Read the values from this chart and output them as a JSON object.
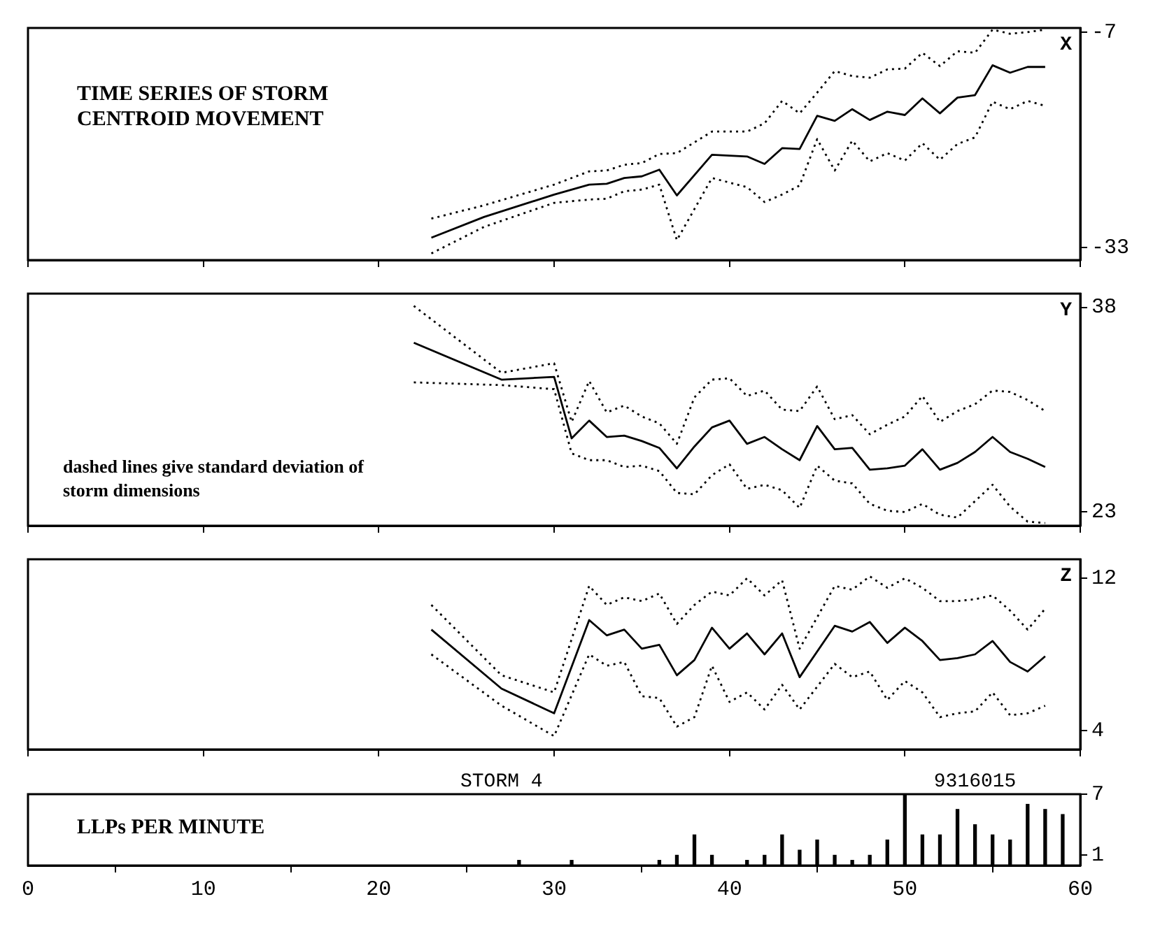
{
  "chart_data": [
    {
      "type": "line",
      "title": "TIME SERIES OF STORM CENTROID MOVEMENT",
      "ylabel": "X",
      "x": [
        23,
        26,
        30,
        32,
        33,
        34,
        35,
        36,
        37,
        39,
        41,
        42,
        43,
        44,
        45,
        46,
        47,
        48,
        49,
        50,
        51,
        52,
        53,
        54,
        55,
        56,
        57,
        58
      ],
      "xlim": [
        0,
        60
      ],
      "xticks": [
        0,
        10,
        20,
        30,
        40,
        50,
        60
      ],
      "ylim": [
        -34.5,
        -6.5
      ],
      "yticks": [
        -7,
        -33
      ],
      "tick_labels": "y",
      "series": [
        {
          "color": "#000000",
          "line_style": "dotted",
          "values": [
            -29.5,
            -27.9,
            -25.4,
            -23.8,
            -23.7,
            -23.0,
            -22.8,
            -21.7,
            -21.6,
            -19.0,
            -19.0,
            -18.0,
            -15.3,
            -16.8,
            -14.3,
            -11.7,
            -12.3,
            -12.5,
            -11.5,
            -11.4,
            -9.5,
            -11.1,
            -9.3,
            -9.5,
            -6.7,
            -7.2,
            -7.0,
            -6.7
          ]
        },
        {
          "color": "#000000",
          "line_style": "solid",
          "values": [
            -31.8,
            -29.3,
            -26.6,
            -25.4,
            -25.3,
            -24.6,
            -24.4,
            -23.6,
            -26.7,
            -21.8,
            -22.0,
            -22.9,
            -21.0,
            -21.1,
            -17.1,
            -17.7,
            -16.3,
            -17.6,
            -16.6,
            -17.0,
            -15.0,
            -16.8,
            -14.9,
            -14.6,
            -11.0,
            -11.9,
            -11.2,
            -11.2
          ]
        },
        {
          "color": "#000000",
          "line_style": "dotted",
          "values": [
            -33.7,
            -30.5,
            -27.6,
            -27.2,
            -27.1,
            -26.2,
            -26.0,
            -25.4,
            -32.1,
            -24.6,
            -25.7,
            -27.5,
            -26.6,
            -25.5,
            -19.9,
            -23.7,
            -20.1,
            -22.6,
            -21.6,
            -22.5,
            -20.4,
            -22.4,
            -20.5,
            -19.7,
            -15.4,
            -16.3,
            -15.3,
            -15.9
          ]
        }
      ]
    },
    {
      "type": "line",
      "ylabel": "Y",
      "annotations": [
        "dashed lines give standard deviation of storm dimensions"
      ],
      "x": [
        22,
        27,
        30,
        31,
        32,
        33,
        34,
        35,
        36,
        37,
        38,
        39,
        40,
        41,
        42,
        43,
        44,
        45,
        46,
        47,
        48,
        49,
        50,
        51,
        52,
        53,
        54,
        55,
        56,
        57,
        58
      ],
      "xlim": [
        0,
        60
      ],
      "xticks": [
        0,
        10,
        20,
        30,
        40,
        50,
        60
      ],
      "ylim": [
        22,
        39
      ],
      "yticks": [
        38,
        23
      ],
      "tick_labels": "y",
      "series": [
        {
          "color": "#000000",
          "line_style": "dotted",
          "values": [
            38.1,
            33.2,
            33.9,
            29.6,
            32.6,
            30.3,
            30.8,
            30.0,
            29.5,
            28.0,
            31.4,
            32.7,
            32.8,
            31.5,
            31.9,
            30.5,
            30.4,
            32.2,
            29.8,
            30.1,
            28.7,
            29.4,
            30.0,
            31.5,
            29.6,
            30.4,
            30.9,
            31.9,
            31.8,
            31.2,
            30.4
          ]
        },
        {
          "color": "#000000",
          "line_style": "solid",
          "values": [
            35.4,
            32.7,
            32.9,
            28.4,
            29.7,
            28.5,
            28.6,
            28.2,
            27.7,
            26.2,
            27.8,
            29.2,
            29.7,
            28.0,
            28.5,
            27.6,
            26.8,
            29.3,
            27.6,
            27.7,
            26.1,
            26.2,
            26.4,
            27.6,
            26.1,
            26.6,
            27.4,
            28.5,
            27.4,
            26.9,
            26.3
          ]
        },
        {
          "color": "#000000",
          "line_style": "dotted",
          "values": [
            32.5,
            32.3,
            32.0,
            27.3,
            26.8,
            26.8,
            26.3,
            26.4,
            26.0,
            24.4,
            24.3,
            25.7,
            26.5,
            24.7,
            25.0,
            24.6,
            23.3,
            26.4,
            25.3,
            25.1,
            23.6,
            23.1,
            23.0,
            23.6,
            22.8,
            22.6,
            23.8,
            25.0,
            23.4,
            22.3,
            22.2
          ]
        }
      ]
    },
    {
      "type": "line",
      "ylabel": "Z",
      "x": [
        23,
        27,
        30,
        32,
        33,
        34,
        35,
        36,
        37,
        38,
        39,
        40,
        41,
        42,
        43,
        44,
        46,
        47,
        48,
        49,
        50,
        51,
        52,
        53,
        54,
        55,
        56,
        57,
        58
      ],
      "xlim": [
        0,
        60
      ],
      "xticks": [
        0,
        10,
        20,
        30,
        40,
        50,
        60
      ],
      "ylim": [
        3,
        13
      ],
      "yticks": [
        12,
        4
      ],
      "tick_labels": "y",
      "series": [
        {
          "color": "#000000",
          "line_style": "dotted",
          "values": [
            10.6,
            6.9,
            6.0,
            11.6,
            10.6,
            11.0,
            10.8,
            11.2,
            9.6,
            10.6,
            11.3,
            11.1,
            12.0,
            11.1,
            11.9,
            8.3,
            11.6,
            11.4,
            12.1,
            11.5,
            12.0,
            11.5,
            10.8,
            10.8,
            10.9,
            11.1,
            10.3,
            9.3,
            10.4
          ]
        },
        {
          "color": "#000000",
          "line_style": "solid",
          "values": [
            9.3,
            6.2,
            4.9,
            9.8,
            9.0,
            9.3,
            8.3,
            8.5,
            6.9,
            7.7,
            9.4,
            8.3,
            9.1,
            8.0,
            9.1,
            6.8,
            9.5,
            9.2,
            9.7,
            8.6,
            9.4,
            8.7,
            7.7,
            7.8,
            8.0,
            8.7,
            7.6,
            7.1,
            7.9
          ]
        },
        {
          "color": "#000000",
          "line_style": "dotted",
          "values": [
            8.0,
            5.3,
            3.7,
            8.0,
            7.4,
            7.6,
            5.8,
            5.7,
            4.2,
            4.7,
            7.4,
            5.5,
            6.0,
            5.1,
            6.4,
            5.1,
            7.5,
            6.8,
            7.1,
            5.6,
            6.6,
            6.0,
            4.7,
            4.9,
            5.0,
            6.0,
            4.8,
            4.9,
            5.3
          ]
        }
      ]
    },
    {
      "type": "bar",
      "title": "LLPs PER MINUTE",
      "annotations": [
        "STORM 4",
        "9316015"
      ],
      "x": [
        28,
        31,
        36,
        37,
        38,
        39,
        41,
        42,
        43,
        44,
        45,
        46,
        47,
        48,
        49,
        50,
        51,
        52,
        53,
        54,
        55,
        56,
        57,
        58,
        59
      ],
      "color": "#000000",
      "values": [
        0.5,
        0.5,
        0.5,
        1,
        3,
        1,
        0.5,
        1,
        3,
        1.5,
        2.5,
        1,
        0.5,
        1,
        2.5,
        7,
        3,
        3,
        5.5,
        4,
        3,
        2.5,
        6,
        5.5,
        5
      ],
      "xlim": [
        0,
        60
      ],
      "xticks": [
        0,
        10,
        20,
        30,
        40,
        50,
        60
      ],
      "ylim": [
        0,
        7
      ],
      "yticks": [
        1,
        7
      ]
    }
  ]
}
